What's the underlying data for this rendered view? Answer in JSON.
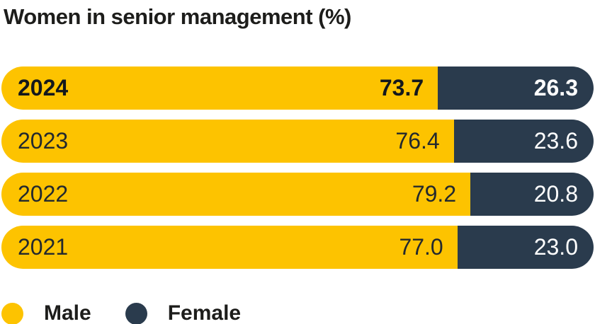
{
  "title": "Women in senior management (%)",
  "colors": {
    "male": "#FDC300",
    "female": "#2A3B4D",
    "text_dark": "#1D1D1B",
    "text_light": "#FFFFFF",
    "background": "#FFFFFF"
  },
  "chart_data": {
    "type": "bar",
    "orientation": "horizontal-stacked",
    "title": "Women in senior management (%)",
    "categories": [
      "2024",
      "2023",
      "2022",
      "2021"
    ],
    "series": [
      {
        "name": "Male",
        "color": "#FDC300",
        "values": [
          73.7,
          76.4,
          79.2,
          77.0
        ]
      },
      {
        "name": "Female",
        "color": "#2A3B4D",
        "values": [
          26.3,
          23.6,
          20.8,
          23.0
        ]
      }
    ],
    "value_labels": [
      [
        "73.7",
        "26.3"
      ],
      [
        "76.4",
        "23.6"
      ],
      [
        "79.2",
        "20.8"
      ],
      [
        "77.0",
        "23.0"
      ]
    ],
    "highlighted_category": "2024",
    "xlim": [
      0,
      100
    ],
    "grid": false,
    "legend_position": "bottom-left"
  },
  "legend": {
    "items": [
      {
        "label": "Male",
        "color": "#FDC300"
      },
      {
        "label": "Female",
        "color": "#2A3B4D"
      }
    ]
  }
}
